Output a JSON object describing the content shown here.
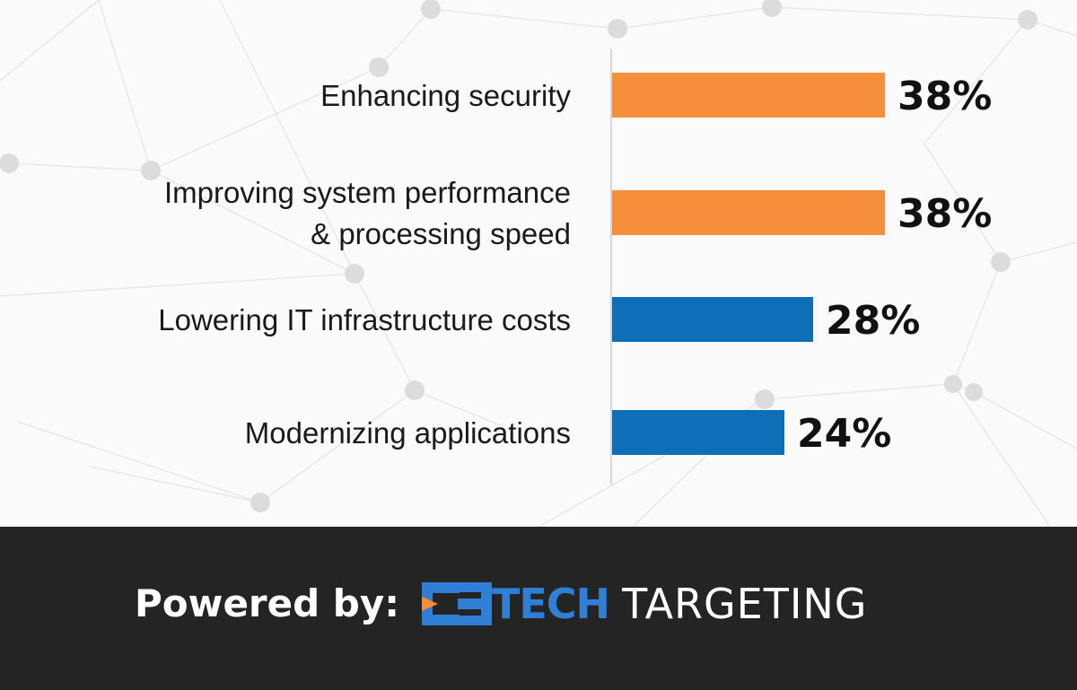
{
  "chart_data": {
    "type": "bar",
    "orientation": "horizontal",
    "categories": [
      [
        "Enhancing security"
      ],
      [
        "Improving system performance",
        "& processing speed"
      ],
      [
        "Lowering IT infrastructure costs"
      ],
      [
        "Modernizing applications"
      ]
    ],
    "values": [
      38,
      38,
      28,
      24
    ],
    "value_labels": [
      "38%",
      "38%",
      "28%",
      "24%"
    ],
    "bar_colors": [
      "#f58f3c",
      "#f58f3c",
      "#0f6eb8",
      "#0f6eb8"
    ],
    "xlim": [
      0,
      50
    ],
    "grid": false,
    "legend": "none"
  },
  "footer": {
    "powered_by": "Powered by:",
    "logo_tech": "TECH",
    "logo_targeting": "TARGETING",
    "logo_colors": {
      "blue": "#2f7fd6",
      "orange": "#f58f3c"
    }
  }
}
